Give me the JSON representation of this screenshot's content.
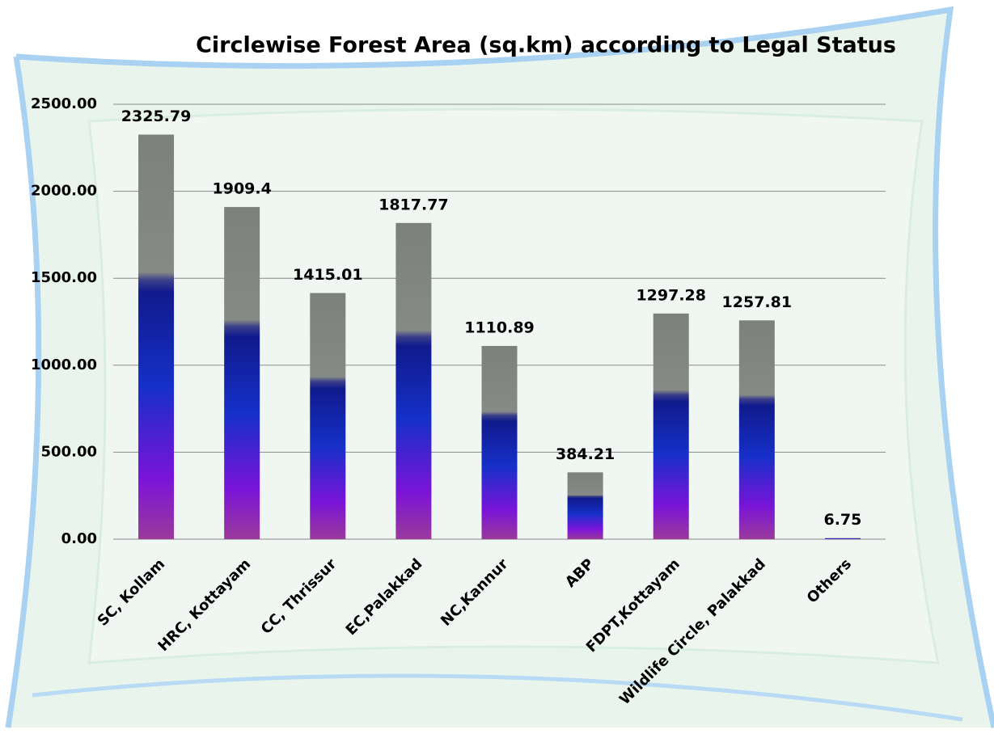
{
  "chart_data": {
    "type": "bar",
    "title": "Circlewise Forest Area (sq.km) according to Legal Status",
    "categories": [
      "SC,  Kollam",
      "HRC, Kottayam",
      "CC, Thrissur",
      "EC,Palakkad",
      "NC,Kannur",
      "ABP",
      "FDPT,Kottayam",
      "Wildlife Circle, Palakkad",
      "Others"
    ],
    "values": [
      2325.79,
      1909.4,
      1415.01,
      1817.77,
      1110.89,
      384.21,
      1297.28,
      1257.81,
      6.75
    ],
    "ylim": [
      0,
      2500
    ],
    "yticks": [
      {
        "value": 0,
        "label": "0.00"
      },
      {
        "value": 500,
        "label": "500.00"
      },
      {
        "value": 1000,
        "label": "1000.00"
      },
      {
        "value": 1500,
        "label": "1500.00"
      },
      {
        "value": 2000,
        "label": "2000.00"
      },
      {
        "value": 2500,
        "label": "2500.00"
      }
    ],
    "grid": true
  }
}
